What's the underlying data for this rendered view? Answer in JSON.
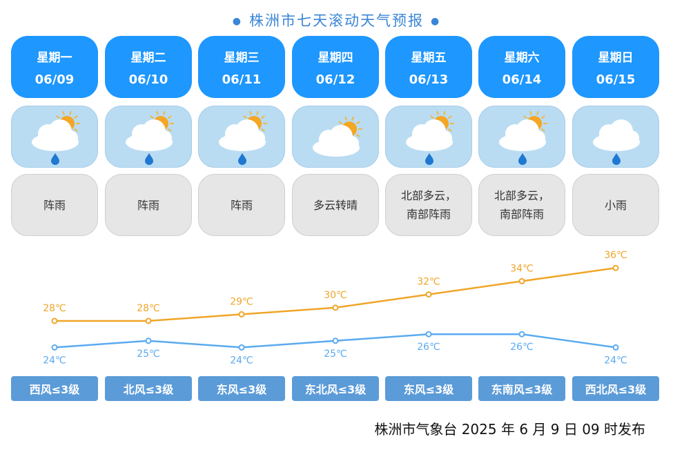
{
  "title": "株洲市七天滚动天气预报",
  "days": [
    {
      "weekday": "星期一",
      "date": "06/09",
      "desc": "阵雨",
      "icon": "sun-cloud-rain-icon",
      "high": "28℃",
      "low": "24℃",
      "wind": "西风≤3级"
    },
    {
      "weekday": "星期二",
      "date": "06/10",
      "desc": "阵雨",
      "icon": "sun-cloud-rain-icon",
      "high": "28℃",
      "low": "25℃",
      "wind": "北风≤3级"
    },
    {
      "weekday": "星期三",
      "date": "06/11",
      "desc": "阵雨",
      "icon": "sun-cloud-rain-icon",
      "high": "29℃",
      "low": "24℃",
      "wind": "东风≤3级"
    },
    {
      "weekday": "星期四",
      "date": "06/12",
      "desc": "多云转晴",
      "icon": "sun-cloud-icon",
      "high": "30℃",
      "low": "25℃",
      "wind": "东北风≤3级"
    },
    {
      "weekday": "星期五",
      "date": "06/13",
      "desc": "北部多云，\n南部阵雨",
      "icon": "sun-cloud-rain-icon",
      "high": "32℃",
      "low": "26℃",
      "wind": "东风≤3级"
    },
    {
      "weekday": "星期六",
      "date": "06/14",
      "desc": "北部多云，\n南部阵雨",
      "icon": "sun-cloud-rain-icon",
      "high": "34℃",
      "low": "26℃",
      "wind": "东南风≤3级"
    },
    {
      "weekday": "星期日",
      "date": "06/15",
      "desc": "小雨",
      "icon": "cloud-rain-icon",
      "high": "36℃",
      "low": "24℃",
      "wind": "西北风≤3级"
    }
  ],
  "chart_data": {
    "type": "line",
    "categories": [
      "06/09",
      "06/10",
      "06/11",
      "06/12",
      "06/13",
      "06/14",
      "06/15"
    ],
    "series": [
      {
        "values": [
          28,
          28,
          29,
          30,
          32,
          34,
          36
        ],
        "color": "#f0a528"
      },
      {
        "values": [
          24,
          25,
          24,
          25,
          26,
          26,
          24
        ],
        "color": "#5aaaf0"
      }
    ],
    "unit": "℃",
    "grid": false
  },
  "footer": "株洲市气象台 2025 年 6 月 9 日 09 时发布",
  "colors": {
    "title": "#3a86d6",
    "date_card": "#1e97ff",
    "icon_card": "#b9dcf2",
    "text_card": "#e6e6e6",
    "wind_tag": "#5b9bd8"
  }
}
